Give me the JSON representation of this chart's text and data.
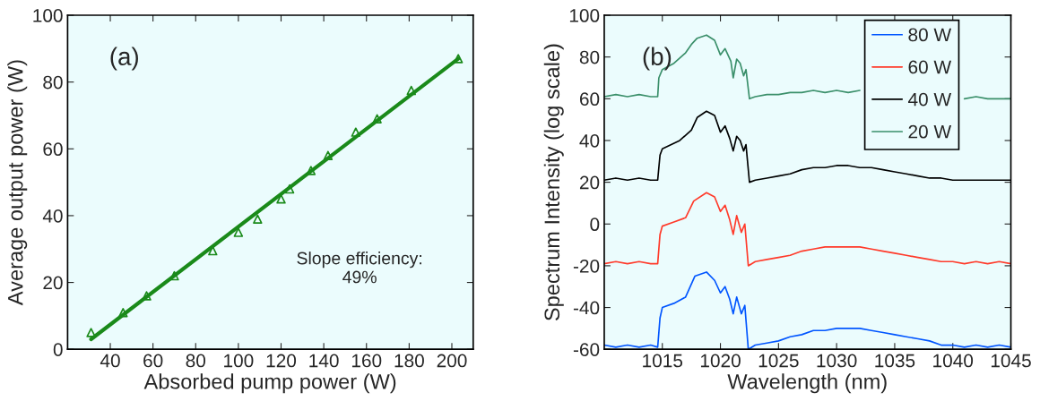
{
  "chart_data": [
    {
      "type": "scatter",
      "xlabel": "Absorbed pump power (W)",
      "ylabel": "Average output power (W)",
      "xlim": [
        20,
        210
      ],
      "xticks": [
        40,
        60,
        80,
        100,
        120,
        140,
        160,
        180,
        200
      ],
      "ylim": [
        0,
        100
      ],
      "yticks": [
        0,
        20,
        40,
        60,
        80,
        100
      ],
      "grid": false,
      "legend": false,
      "annotations": [
        "(a)",
        "Slope efficiency:\n49%"
      ],
      "series": [
        {
          "type": "scatter",
          "marker": "triangle",
          "color": "#1a8a1a",
          "x": [
            31,
            46,
            57,
            70,
            88,
            100,
            109,
            120,
            124,
            134,
            142,
            155,
            165,
            181,
            203
          ],
          "values": [
            5,
            11,
            16,
            22,
            29.5,
            35,
            39,
            45,
            48,
            53.5,
            58,
            65,
            69,
            77.5,
            87
          ]
        },
        {
          "type": "line",
          "marker": "none",
          "line_style": "solid",
          "color": "#1a8a1a",
          "x": [
            31,
            203
          ],
          "values": [
            3,
            87
          ]
        }
      ]
    },
    {
      "type": "line",
      "xlabel": "Wavelength (nm)",
      "ylabel": "Spectrum Intensity (log scale)",
      "xlim": [
        1010,
        1045
      ],
      "xticks": [
        1015,
        1020,
        1025,
        1030,
        1035,
        1040,
        1045
      ],
      "ylim": [
        -60,
        100
      ],
      "yticks": [
        -60,
        -40,
        -20,
        0,
        20,
        40,
        60,
        80,
        100
      ],
      "grid": false,
      "legend": "top right",
      "marker": "none",
      "line_style": "solid",
      "annotations": [
        "(b)"
      ],
      "series": [
        {
          "name": "80 W",
          "color": "#0055ff",
          "x": [
            1010,
            1011,
            1012,
            1013,
            1014,
            1014.6,
            1014.8,
            1015,
            1016,
            1017,
            1017.8,
            1018.8,
            1019.5,
            1020,
            1020.4,
            1020.8,
            1021.1,
            1021.4,
            1021.8,
            1022.1,
            1022.4,
            1023,
            1024,
            1025,
            1026,
            1027,
            1028,
            1029,
            1030,
            1031,
            1032,
            1033,
            1034,
            1035,
            1036,
            1037,
            1038,
            1039,
            1040,
            1041,
            1042,
            1043,
            1044,
            1045
          ],
          "values": [
            -58,
            -59,
            -58,
            -59,
            -58,
            -59,
            -45,
            -40,
            -38,
            -35,
            -25,
            -23,
            -27,
            -33,
            -30,
            -36,
            -43,
            -35,
            -43,
            -39,
            -60,
            -58,
            -57,
            -56,
            -54,
            -53,
            -51,
            -51,
            -50,
            -50,
            -50,
            -51,
            -52,
            -53,
            -54,
            -55,
            -56,
            -58,
            -58,
            -59,
            -58,
            -59,
            -58,
            -59
          ]
        },
        {
          "name": "60 W",
          "color": "#ff3a2a",
          "x": [
            1010,
            1011,
            1012,
            1013,
            1014,
            1014.6,
            1014.8,
            1015,
            1016,
            1017,
            1017.7,
            1018.8,
            1019.5,
            1020,
            1020.4,
            1020.8,
            1021.1,
            1021.4,
            1021.8,
            1022.1,
            1022.4,
            1023,
            1024,
            1025,
            1026,
            1027,
            1028,
            1029,
            1030,
            1031,
            1032,
            1033,
            1034,
            1035,
            1036,
            1037,
            1038,
            1039,
            1040,
            1041,
            1042,
            1043,
            1044,
            1045
          ],
          "values": [
            -19,
            -18,
            -19,
            -18,
            -19,
            -19,
            -5,
            -1,
            1,
            3,
            11,
            15,
            13,
            6,
            9,
            2,
            -5,
            4,
            -4,
            0,
            -20,
            -18,
            -17,
            -16,
            -15,
            -13,
            -12,
            -11,
            -11,
            -11,
            -11,
            -12,
            -13,
            -14,
            -15,
            -16,
            -17,
            -18,
            -18,
            -19,
            -18,
            -19,
            -18,
            -19
          ]
        },
        {
          "name": "40 W",
          "color": "#000000",
          "x": [
            1010,
            1011,
            1012,
            1013,
            1014,
            1014.6,
            1014.8,
            1015,
            1016.5,
            1017.5,
            1018,
            1018.8,
            1019.5,
            1020,
            1020.4,
            1020.8,
            1021.1,
            1021.4,
            1021.7,
            1022,
            1022.2,
            1022.5,
            1023,
            1024,
            1025,
            1026,
            1027,
            1028,
            1029,
            1030,
            1031,
            1032,
            1033,
            1034,
            1035,
            1036,
            1037,
            1038,
            1039,
            1040,
            1041,
            1042,
            1043,
            1044,
            1045
          ],
          "values": [
            21,
            22,
            21,
            22,
            21,
            21,
            33,
            36,
            40,
            45,
            51,
            54,
            52,
            44,
            47,
            41,
            35,
            42,
            40,
            35,
            38,
            20,
            21,
            22,
            23,
            24,
            26,
            27,
            27,
            28,
            28,
            27,
            27,
            26,
            25,
            24,
            23,
            22,
            22,
            21,
            21,
            21,
            21,
            21,
            21
          ]
        },
        {
          "name": "20 W",
          "color": "#3a8f6a",
          "x": [
            1010,
            1011,
            1012,
            1013,
            1014,
            1014.6,
            1014.7,
            1015,
            1016,
            1017,
            1017.5,
            1018,
            1018.8,
            1019.5,
            1020,
            1020.4,
            1020.9,
            1021.1,
            1021.4,
            1021.7,
            1022,
            1022.2,
            1022.5,
            1023,
            1024,
            1025,
            1026,
            1027,
            1028,
            1029,
            1030,
            1031,
            1032,
            1033,
            1034,
            1035,
            1036,
            1037,
            1038,
            1039,
            1040,
            1041,
            1042,
            1043,
            1044,
            1045
          ],
          "values": [
            61,
            62,
            61,
            62,
            61,
            61,
            70,
            74,
            77,
            82,
            86,
            89,
            90.5,
            88,
            81,
            84,
            78,
            70,
            79,
            77,
            71,
            74,
            60,
            61,
            62,
            62,
            63,
            63,
            64,
            63,
            64,
            63,
            64,
            null,
            null,
            null,
            null,
            null,
            null,
            null,
            null,
            60,
            61,
            60,
            60,
            60
          ]
        }
      ]
    }
  ]
}
